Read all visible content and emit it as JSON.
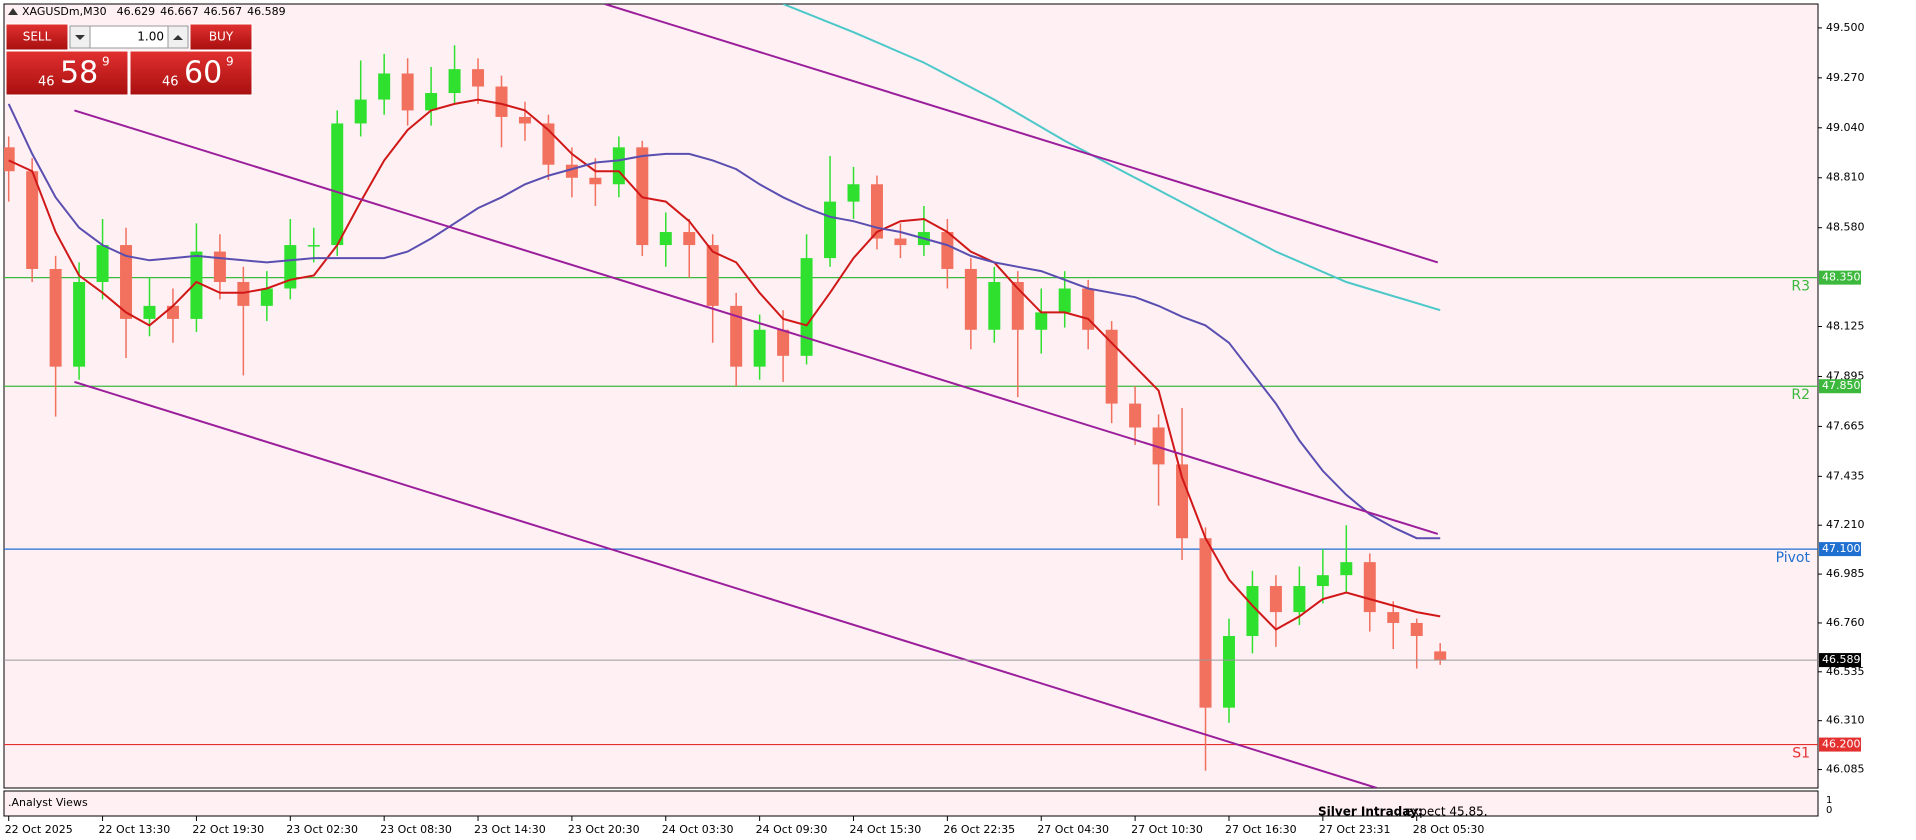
{
  "chart_data": {
    "type": "candlestick",
    "title": "XAGUSDm,M30",
    "open": [
      48.95,
      48.84,
      48.39,
      47.94,
      48.33,
      48.5,
      48.16,
      48.22,
      48.16,
      48.47,
      48.33,
      48.22,
      48.3,
      48.5,
      48.5,
      49.06,
      49.17,
      49.29,
      49.12,
      49.2,
      49.31,
      49.23,
      49.09,
      49.06,
      48.87,
      48.81,
      48.78,
      48.95,
      48.5,
      48.56,
      48.5,
      48.22,
      47.94,
      48.11,
      47.99,
      48.44,
      48.7,
      48.78,
      48.53,
      48.5,
      48.56,
      48.39,
      48.11,
      48.33,
      48.11,
      48.19,
      48.3,
      48.11,
      47.77,
      47.66,
      47.49,
      47.15,
      46.37,
      46.7,
      46.93,
      46.81,
      46.93,
      46.98,
      47.04,
      46.81,
      46.76,
      46.629
    ],
    "high": [
      49.0,
      48.9,
      48.45,
      48.42,
      48.62,
      48.58,
      48.35,
      48.3,
      48.6,
      48.55,
      48.4,
      48.38,
      48.62,
      48.58,
      49.12,
      49.35,
      49.38,
      49.36,
      49.32,
      49.42,
      49.36,
      49.28,
      49.16,
      49.1,
      48.95,
      48.9,
      49.0,
      48.98,
      48.65,
      48.62,
      48.55,
      48.28,
      48.18,
      48.2,
      48.55,
      48.91,
      48.86,
      48.82,
      48.6,
      48.68,
      48.62,
      48.44,
      48.4,
      48.38,
      48.3,
      48.38,
      48.34,
      48.15,
      47.85,
      47.72,
      47.75,
      47.2,
      46.78,
      47.0,
      46.98,
      47.02,
      47.1,
      47.21,
      47.08,
      46.86,
      46.78,
      46.667
    ],
    "low": [
      48.7,
      48.33,
      47.71,
      47.88,
      48.25,
      47.98,
      48.08,
      48.05,
      48.1,
      48.25,
      47.9,
      48.15,
      48.25,
      48.42,
      48.45,
      49.0,
      49.1,
      49.05,
      49.05,
      49.15,
      49.15,
      48.95,
      48.98,
      48.8,
      48.72,
      48.68,
      48.72,
      48.45,
      48.4,
      48.35,
      48.05,
      47.85,
      47.88,
      47.87,
      47.95,
      48.4,
      48.62,
      48.48,
      48.44,
      48.45,
      48.3,
      48.02,
      48.05,
      47.8,
      48.0,
      48.12,
      48.02,
      47.68,
      47.58,
      47.3,
      47.05,
      46.08,
      46.3,
      46.62,
      46.65,
      46.75,
      46.85,
      46.9,
      46.72,
      46.64,
      46.55,
      46.567
    ],
    "close": [
      48.84,
      48.39,
      47.94,
      48.33,
      48.5,
      48.16,
      48.22,
      48.16,
      48.47,
      48.33,
      48.22,
      48.3,
      48.5,
      48.5,
      49.06,
      49.17,
      49.29,
      49.12,
      49.2,
      49.31,
      49.23,
      49.09,
      49.06,
      48.87,
      48.81,
      48.78,
      48.95,
      48.5,
      48.56,
      48.5,
      48.22,
      47.94,
      48.11,
      47.99,
      48.44,
      48.7,
      48.78,
      48.53,
      48.5,
      48.56,
      48.39,
      48.11,
      48.33,
      48.11,
      48.19,
      48.3,
      48.11,
      47.77,
      47.66,
      47.49,
      47.15,
      46.37,
      46.7,
      46.93,
      46.81,
      46.93,
      46.98,
      47.04,
      46.81,
      46.76,
      46.7,
      46.589
    ],
    "up_color": "#2fe02f",
    "down_color": "#f2705e",
    "xlim": [
      -0.2,
      77.1
    ],
    "ylim": [
      46.0,
      49.61
    ],
    "xticks": [
      {
        "value": 0,
        "label": "22 Oct 2025"
      },
      {
        "value": 4,
        "label": "22 Oct 13:30"
      },
      {
        "value": 8,
        "label": "22 Oct 19:30"
      },
      {
        "value": 12,
        "label": "23 Oct 02:30"
      },
      {
        "value": 16,
        "label": "23 Oct 08:30"
      },
      {
        "value": 20,
        "label": "23 Oct 14:30"
      },
      {
        "value": 24,
        "label": "23 Oct 20:30"
      },
      {
        "value": 28,
        "label": "24 Oct 03:30"
      },
      {
        "value": 32,
        "label": "24 Oct 09:30"
      },
      {
        "value": 36,
        "label": "24 Oct 15:30"
      },
      {
        "value": 40,
        "label": "26 Oct 22:35"
      },
      {
        "value": 44,
        "label": "27 Oct 04:30"
      },
      {
        "value": 48,
        "label": "27 Oct 10:30"
      },
      {
        "value": 52,
        "label": "27 Oct 16:30"
      },
      {
        "value": 56,
        "label": "27 Oct 23:31"
      },
      {
        "value": 60,
        "label": "28 Oct 05:30"
      }
    ],
    "yticks": [
      {
        "value": 49.5,
        "label": "49.500"
      },
      {
        "value": 49.27,
        "label": "49.270"
      },
      {
        "value": 49.04,
        "label": "49.040"
      },
      {
        "value": 48.81,
        "label": "48.810"
      },
      {
        "value": 48.58,
        "label": "48.580"
      },
      {
        "value": 48.125,
        "label": "48.125"
      },
      {
        "value": 47.895,
        "label": "47.895"
      },
      {
        "value": 47.665,
        "label": "47.665"
      },
      {
        "value": 47.435,
        "label": "47.435"
      },
      {
        "value": 47.21,
        "label": "47.210"
      },
      {
        "value": 46.985,
        "label": "46.985"
      },
      {
        "value": 46.76,
        "label": "46.760"
      },
      {
        "value": 46.535,
        "label": "46.535"
      },
      {
        "value": 46.31,
        "label": "46.310"
      },
      {
        "value": 46.085,
        "label": "46.085"
      }
    ],
    "levels": [
      {
        "label": "R3",
        "value": 48.35,
        "value_label": "48.350",
        "color": "#3cb83c"
      },
      {
        "label": "R2",
        "value": 47.85,
        "value_label": "47.850",
        "color": "#3cb83c"
      },
      {
        "label": "Pivot",
        "value": 47.1,
        "value_label": "47.100",
        "color": "#1e6fd0"
      },
      {
        "label": "S1",
        "value": 46.2,
        "value_label": "46.200",
        "color": "#e53030"
      }
    ],
    "overlays": [
      {
        "color": "#d01818",
        "values": [
          48.89,
          48.84,
          48.56,
          48.36,
          48.28,
          48.19,
          48.13,
          48.22,
          48.33,
          48.28,
          48.28,
          48.3,
          48.34,
          48.36,
          48.5,
          48.7,
          48.89,
          49.03,
          49.12,
          49.15,
          49.17,
          49.15,
          49.12,
          49.03,
          48.92,
          48.84,
          48.84,
          48.72,
          48.7,
          48.61,
          48.47,
          48.42,
          48.28,
          48.16,
          48.13,
          48.28,
          48.44,
          48.56,
          48.61,
          48.62,
          48.56,
          48.47,
          48.42,
          48.3,
          48.19,
          48.19,
          48.16,
          48.05,
          47.94,
          47.83,
          47.43,
          47.15,
          46.96,
          46.84,
          46.73,
          46.79,
          46.87,
          46.9,
          46.87,
          46.84,
          46.81,
          46.79
        ]
      },
      {
        "color": "#5a4fb0",
        "values": [
          49.15,
          48.92,
          48.72,
          48.58,
          48.5,
          48.45,
          48.43,
          48.44,
          48.45,
          48.44,
          48.43,
          48.42,
          48.43,
          48.44,
          48.44,
          48.44,
          48.44,
          48.47,
          48.53,
          48.6,
          48.67,
          48.72,
          48.78,
          48.82,
          48.85,
          48.88,
          48.89,
          48.91,
          48.92,
          48.92,
          48.89,
          48.85,
          48.78,
          48.72,
          48.67,
          48.63,
          48.61,
          48.58,
          48.56,
          48.53,
          48.5,
          48.45,
          48.42,
          48.4,
          48.38,
          48.34,
          48.3,
          48.28,
          48.26,
          48.22,
          48.17,
          48.13,
          48.05,
          47.91,
          47.77,
          47.6,
          47.46,
          47.35,
          47.26,
          47.2,
          47.15,
          47.15
        ]
      },
      {
        "color": "#4cc8c8",
        "x": [
          33,
          36,
          39,
          42,
          45,
          48,
          51,
          54,
          57,
          61
        ],
        "values": [
          49.61,
          49.48,
          49.34,
          49.17,
          48.98,
          48.81,
          48.64,
          48.47,
          48.33,
          48.2
        ]
      },
      {
        "color": "#9b1f9b",
        "x": [
          25.4,
          60.9
        ],
        "values": [
          49.61,
          48.42
        ]
      },
      {
        "color": "#9b1f9b",
        "x": [
          2.8,
          60.9
        ],
        "values": [
          49.12,
          47.17
        ]
      },
      {
        "color": "#9b1f9b",
        "x": [
          2.8,
          58.3
        ],
        "values": [
          47.87,
          46.0
        ]
      }
    ]
  },
  "trade_panel": {
    "sell": "SELL",
    "volume": "1.00",
    "buy": "BUY",
    "bid": [
      "46",
      "58",
      "9"
    ],
    "ask": [
      "46",
      "60",
      "9"
    ]
  },
  "subwindow": {
    "name": ".Analyst Views",
    "texts": [
      "Silver Intraday:",
      "expect 45.85."
    ],
    "yticks": [
      1,
      0
    ]
  }
}
